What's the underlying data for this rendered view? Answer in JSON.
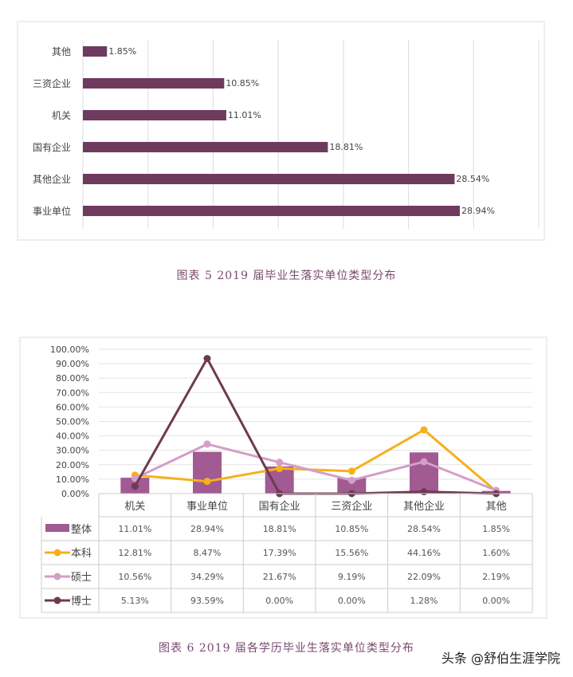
{
  "chart_data": [
    {
      "type": "bar",
      "orientation": "horizontal",
      "categories": [
        "其他",
        "三资企业",
        "机关",
        "国有企业",
        "其他企业",
        "事业单位"
      ],
      "values": [
        1.85,
        10.85,
        11.01,
        18.81,
        28.54,
        28.94
      ],
      "data_labels": [
        "1.85%",
        "10.85%",
        "11.01%",
        "18.81%",
        "28.54%",
        "28.94%"
      ],
      "xlim": [
        0,
        35
      ],
      "grid": true,
      "color": "#6e3a5e",
      "title": "图表 5  2019 届毕业生落实单位类型分布"
    },
    {
      "type": "bar+line",
      "categories": [
        "机关",
        "事业单位",
        "国有企业",
        "三资企业",
        "其他企业",
        "其他"
      ],
      "yticks": [
        "0.00%",
        "10.00%",
        "20.00%",
        "30.00%",
        "40.00%",
        "50.00%",
        "60.00%",
        "70.00%",
        "80.00%",
        "90.00%",
        "100.00%"
      ],
      "ylim": [
        0,
        100
      ],
      "grid": true,
      "legend": "data-table",
      "series": [
        {
          "name": "整体",
          "type": "bar",
          "color": "#a25a92",
          "values": [
            11.01,
            28.94,
            18.81,
            10.85,
            28.54,
            1.85
          ],
          "labels": [
            "11.01%",
            "28.94%",
            "18.81%",
            "10.85%",
            "28.54%",
            "1.85%"
          ]
        },
        {
          "name": "本科",
          "type": "line",
          "color": "#f5b01c",
          "values": [
            12.81,
            8.47,
            17.39,
            15.56,
            44.16,
            1.6
          ],
          "labels": [
            "12.81%",
            "8.47%",
            "17.39%",
            "15.56%",
            "44.16%",
            "1.60%"
          ]
        },
        {
          "name": "硕士",
          "type": "line",
          "color": "#d39ec8",
          "values": [
            10.56,
            34.29,
            21.67,
            9.19,
            22.09,
            2.19
          ],
          "labels": [
            "10.56%",
            "34.29%",
            "21.67%",
            "9.19%",
            "22.09%",
            "2.19%"
          ]
        },
        {
          "name": "博士",
          "type": "line",
          "color": "#6e3a52",
          "values": [
            5.13,
            93.59,
            0.0,
            0.0,
            1.28,
            0.0
          ],
          "labels": [
            "5.13%",
            "93.59%",
            "0.00%",
            "0.00%",
            "1.28%",
            "0.00%"
          ]
        }
      ],
      "title": "图表 6  2019 届各学历毕业生落实单位类型分布"
    }
  ],
  "watermark": "头条 @舒伯生涯学院"
}
